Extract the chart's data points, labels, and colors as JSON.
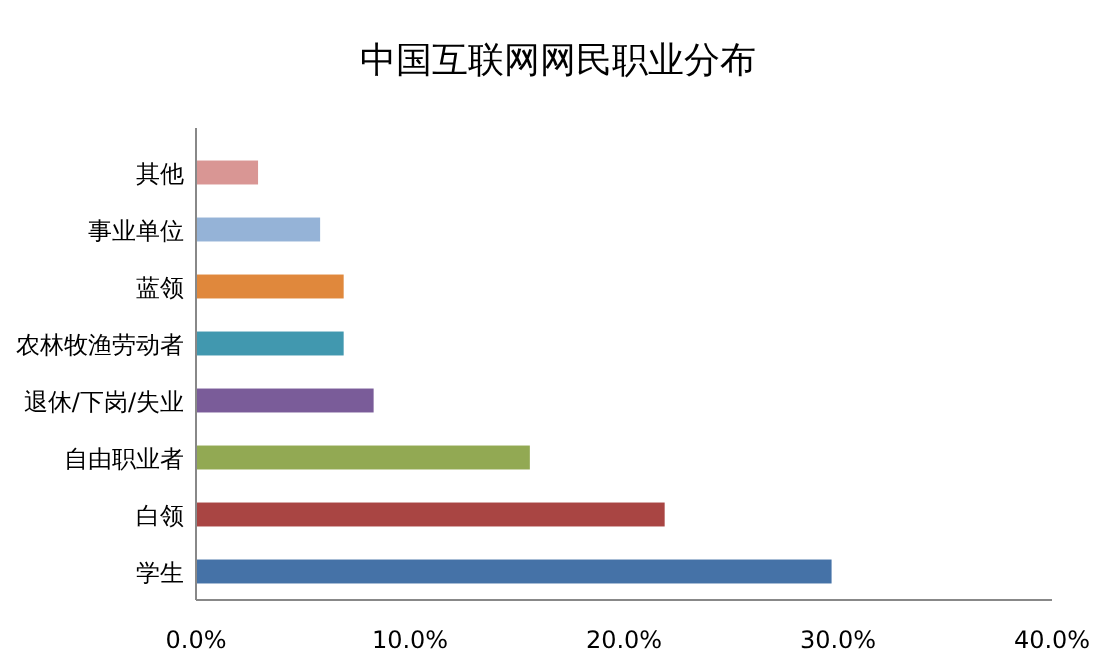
{
  "chart_data": {
    "type": "bar",
    "orientation": "horizontal",
    "title": "中国互联网网民职业分布",
    "categories": [
      "其他",
      "事业单位",
      "蓝领",
      "农林牧渔劳动者",
      "退休/下岗/失业",
      "自由职业者",
      "白领",
      "学生"
    ],
    "values": [
      2.9,
      5.8,
      6.9,
      6.9,
      8.3,
      15.6,
      21.9,
      29.7
    ],
    "colors": [
      "#d99694",
      "#95b3d7",
      "#e0883c",
      "#4198af",
      "#7a5c99",
      "#92a953",
      "#a94543",
      "#4572a7"
    ],
    "xlim": [
      0,
      40
    ],
    "xticks": [
      {
        "value": 0,
        "label": "0.0%"
      },
      {
        "value": 10,
        "label": "10.0%"
      },
      {
        "value": 20,
        "label": "20.0%"
      },
      {
        "value": 30,
        "label": "30.0%"
      },
      {
        "value": 40,
        "label": "40.0%"
      }
    ],
    "grid": false
  }
}
